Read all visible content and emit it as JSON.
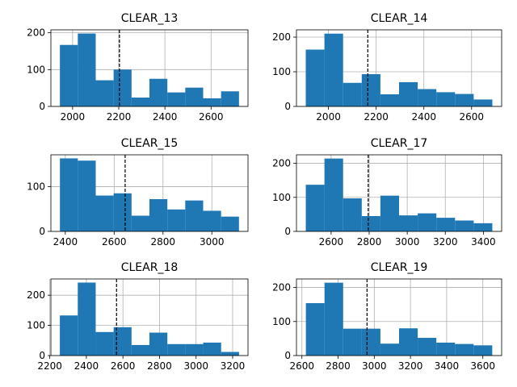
{
  "chart_data": [
    {
      "type": "bar",
      "title": "CLEAR_13",
      "bins": [
        1945,
        2022.6,
        2100.2,
        2177.8,
        2255.4,
        2333,
        2410.6,
        2488.2,
        2565.8,
        2643.4,
        2721
      ],
      "counts": [
        167,
        198,
        71,
        100,
        24,
        75,
        38,
        51,
        22,
        41
      ],
      "vline": 2203,
      "xticks": [
        2000,
        2200,
        2400,
        2600
      ],
      "yticks": [
        0,
        100,
        200
      ],
      "xlim": [
        1906,
        2760
      ],
      "ylim": [
        0,
        208
      ],
      "grid": true
    },
    {
      "type": "bar",
      "title": "CLEAR_14",
      "bins": [
        1905,
        1983.2,
        2061.4,
        2139.6,
        2217.8,
        2296,
        2374.2,
        2452.4,
        2530.6,
        2608.8,
        2687
      ],
      "counts": [
        164,
        210,
        68,
        93,
        35,
        70,
        50,
        41,
        36,
        20
      ],
      "vline": 2165,
      "xticks": [
        2000,
        2200,
        2400,
        2600
      ],
      "yticks": [
        0,
        100,
        200
      ],
      "xlim": [
        1866,
        2726
      ],
      "ylim": [
        0,
        221
      ],
      "grid": true
    },
    {
      "type": "bar",
      "title": "CLEAR_15",
      "bins": [
        2378,
        2451.3,
        2524.6,
        2597.9,
        2671.2,
        2744.5,
        2817.8,
        2891.1,
        2964.4,
        3037.7,
        3111
      ],
      "counts": [
        163,
        158,
        80,
        85,
        35,
        72,
        49,
        69,
        46,
        33
      ],
      "vline": 2645,
      "xticks": [
        2400,
        2600,
        2800,
        3000
      ],
      "yticks": [
        0,
        100
      ],
      "xlim": [
        2341,
        3148
      ],
      "ylim": [
        0,
        171
      ],
      "grid": true
    },
    {
      "type": "bar",
      "title": "CLEAR_17",
      "bins": [
        2467,
        2565,
        2663,
        2761,
        2859,
        2957,
        3055,
        3153,
        3251,
        3349,
        3447
      ],
      "counts": [
        137,
        214,
        97,
        45,
        105,
        47,
        53,
        40,
        32,
        24
      ],
      "vline": 2795,
      "xticks": [
        2600,
        2800,
        3000,
        3200,
        3400
      ],
      "yticks": [
        0,
        100,
        200
      ],
      "xlim": [
        2418,
        3496
      ],
      "ylim": [
        0,
        225
      ],
      "grid": true
    },
    {
      "type": "bar",
      "title": "CLEAR_18",
      "bins": [
        2255,
        2353,
        2451,
        2549,
        2647,
        2745,
        2843,
        2941,
        3039,
        3137,
        3235
      ],
      "counts": [
        133,
        242,
        78,
        94,
        35,
        76,
        38,
        38,
        43,
        12
      ],
      "vline": 2565,
      "xticks": [
        2200,
        2400,
        2600,
        2800,
        3000,
        3200
      ],
      "yticks": [
        0,
        100,
        200
      ],
      "xlim": [
        2206,
        3284
      ],
      "ylim": [
        0,
        254
      ],
      "grid": true
    },
    {
      "type": "bar",
      "title": "CLEAR_19",
      "bins": [
        2622,
        2725,
        2828,
        2931,
        3034,
        3137,
        3240,
        3343,
        3446,
        3549,
        3652
      ],
      "counts": [
        154,
        214,
        79,
        79,
        35,
        80,
        52,
        38,
        34,
        30
      ],
      "vline": 2960,
      "xticks": [
        2600,
        2800,
        3000,
        3200,
        3400,
        3600
      ],
      "yticks": [
        0,
        100,
        200
      ],
      "xlim": [
        2570,
        3704
      ],
      "ylim": [
        0,
        225
      ],
      "grid": true
    }
  ],
  "colors": {
    "bar": "#1f77b4",
    "grid": "#b0b0b0",
    "vline": "#000000",
    "axes": "#000000"
  }
}
